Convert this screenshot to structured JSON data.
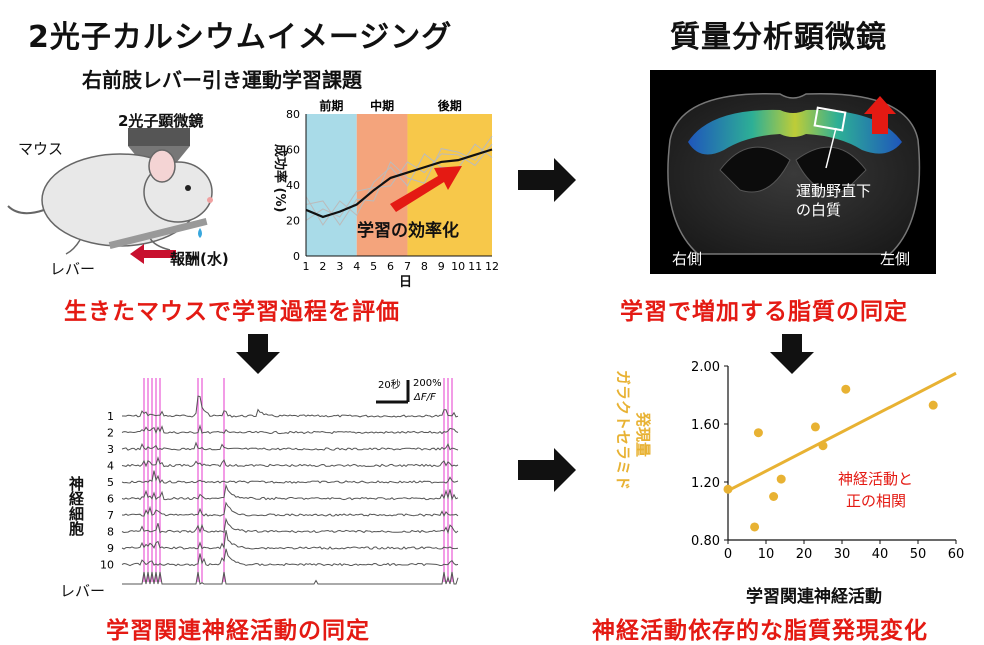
{
  "left_title": "2光子カルシウムイメージング",
  "right_title": "質量分析顕微鏡",
  "task_title": "右前肢レバー引き運動学習課題",
  "microscope_label": "2光子顕微鏡",
  "mouse_label": "マウス",
  "lever_label": "レバー",
  "reward_label": "報酬(水)",
  "caption_top_left": "生きたマウスで学習過程を評価",
  "caption_top_right": "学習で増加する脂質の同定",
  "caption_bottom_left": "学習関連神経活動の同定",
  "caption_bottom_right": "神経活動依存的な脂質発現変化",
  "brain": {
    "annotation": "運動野直下\nの白質",
    "annotation_line1": "運動野直下",
    "annotation_line2": "の白質",
    "right_side": "右側",
    "left_side": "左側"
  },
  "traces": {
    "ylabel": "神経細胞",
    "lever_label": "レバー",
    "scale_time": "20秒",
    "scale_amp": "200%",
    "scale_unit": "ΔF/F",
    "rows": [
      "1",
      "2",
      "3",
      "4",
      "5",
      "6",
      "7",
      "8",
      "9",
      "10"
    ]
  },
  "chart_data": [
    {
      "type": "line",
      "ylabel": "成功率 (%)",
      "xlabel": "日",
      "x": [
        1,
        2,
        3,
        4,
        5,
        6,
        7,
        8,
        9,
        10,
        11,
        12
      ],
      "ylim": [
        0,
        80
      ],
      "yticks": [
        "0",
        "20",
        "40",
        "60",
        "80"
      ],
      "xticks": [
        "1",
        "2",
        "3",
        "4",
        "5",
        "6",
        "7",
        "8",
        "9",
        "10",
        "11",
        "12"
      ],
      "phases": [
        {
          "label": "前期",
          "from": 1,
          "to": 4,
          "color": "#a9dbe8"
        },
        {
          "label": "中期",
          "from": 4,
          "to": 7,
          "color": "#f4a47c"
        },
        {
          "label": "後期",
          "from": 7,
          "to": 12,
          "color": "#f7c84a"
        }
      ],
      "annotation": "学習の効率化",
      "series": [
        {
          "values": [
            26,
            22,
            25,
            29,
            37,
            44,
            47,
            50,
            53,
            54,
            57,
            60
          ],
          "color": "#111"
        }
      ]
    },
    {
      "type": "scatter",
      "ylabel": "ガラクトセラミド\n発現量",
      "ylabel_line1": "ガラクトセラミド",
      "ylabel_line2": "発現量",
      "xlabel": "学習関連神経活動",
      "xlim": [
        0,
        60
      ],
      "ylim": [
        0.8,
        2.0
      ],
      "xticks": [
        "0",
        "10",
        "20",
        "30",
        "40",
        "50",
        "60"
      ],
      "yticks": [
        "0.80",
        "1.20",
        "1.60",
        "2.00"
      ],
      "annotation": "神経活動と\n正の相関",
      "annotation_line1": "神経活動と",
      "annotation_line2": "正の相関",
      "points": [
        [
          0,
          1.15
        ],
        [
          7,
          0.89
        ],
        [
          8,
          1.54
        ],
        [
          12,
          1.1
        ],
        [
          14,
          1.22
        ],
        [
          23,
          1.58
        ],
        [
          25,
          1.45
        ],
        [
          31,
          1.84
        ],
        [
          54,
          1.73
        ]
      ],
      "fit": [
        [
          0,
          1.14
        ],
        [
          60,
          1.95
        ]
      ],
      "color": "#e8b233"
    }
  ]
}
